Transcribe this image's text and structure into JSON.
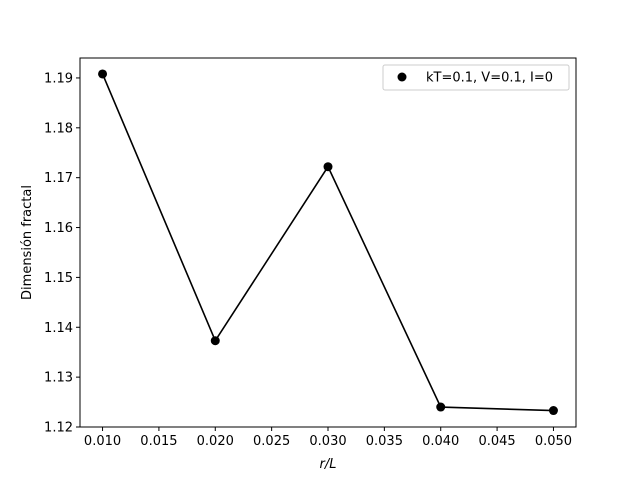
{
  "chart_data": {
    "type": "line",
    "title": "",
    "xlabel": "r/L",
    "ylabel": "Dimensión fractal",
    "x": [
      0.01,
      0.02,
      0.03,
      0.04,
      0.05
    ],
    "series": [
      {
        "name": "kT=0.1, V=0.1, I=0",
        "values": [
          1.1908,
          1.1373,
          1.1722,
          1.124,
          1.1233
        ],
        "color": "#000000",
        "marker": "circle"
      }
    ],
    "xlim": [
      0.008,
      0.052
    ],
    "ylim": [
      1.12,
      1.194
    ],
    "xticks": [
      0.01,
      0.015,
      0.02,
      0.025,
      0.03,
      0.035,
      0.04,
      0.045,
      0.05
    ],
    "xtick_labels": [
      "0.010",
      "0.015",
      "0.020",
      "0.025",
      "0.030",
      "0.035",
      "0.040",
      "0.045",
      "0.050"
    ],
    "yticks": [
      1.12,
      1.13,
      1.14,
      1.15,
      1.16,
      1.17,
      1.18,
      1.19
    ],
    "ytick_labels": [
      "1.12",
      "1.13",
      "1.14",
      "1.15",
      "1.16",
      "1.17",
      "1.18",
      "1.19"
    ],
    "grid": false,
    "legend_position": "top-right"
  }
}
